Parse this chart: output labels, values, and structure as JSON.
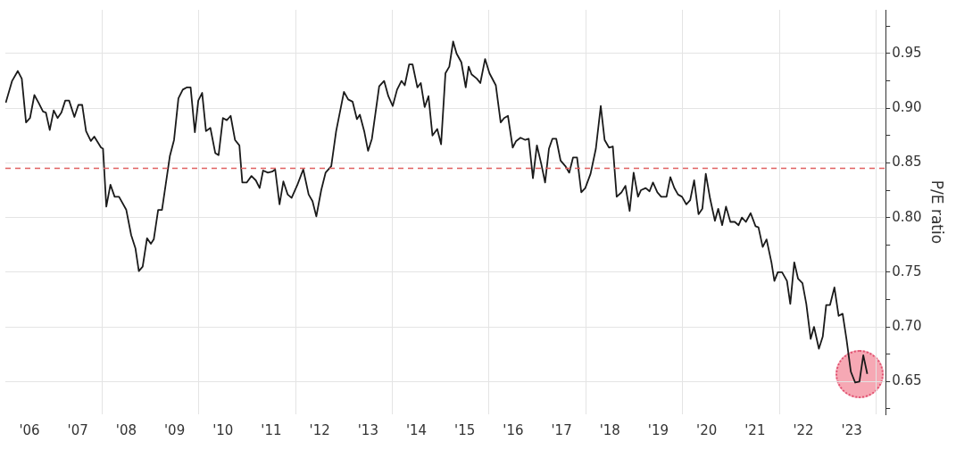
{
  "chart_data": {
    "type": "line",
    "ylabel": "P/E ratio",
    "x": [
      "2006-01-04",
      "2006-02-21",
      "2006-04-05",
      "2006-05-05",
      "2006-06-06",
      "2006-07-06",
      "2006-08-08",
      "2006-09-09",
      "2006-10-12",
      "2006-11-03",
      "2006-12-02",
      "2007-01-01",
      "2007-01-30",
      "2007-02-28",
      "2007-03-29",
      "2007-04-27",
      "2007-06-06",
      "2007-07-06",
      "2007-08-04",
      "2007-09-02",
      "2007-10-08",
      "2007-11-03",
      "2007-12-24",
      "2008-01-08",
      "2008-02-02",
      "2008-03-04",
      "2008-04-05",
      "2008-05-08",
      "2008-07-02",
      "2008-08-08",
      "2008-09-09",
      "2008-10-05",
      "2008-11-03",
      "2008-12-06",
      "2009-01-04",
      "2009-01-26",
      "2009-02-28",
      "2009-03-29",
      "2009-05-27",
      "2009-06-28",
      "2009-07-31",
      "2009-09-02",
      "2009-10-01",
      "2009-10-31",
      "2009-12-02",
      "2009-12-28",
      "2010-01-26",
      "2010-02-24",
      "2010-03-29",
      "2010-05-05",
      "2010-05-30",
      "2010-07-02",
      "2010-07-31",
      "2010-08-29",
      "2010-10-01",
      "2010-11-03",
      "2010-11-25",
      "2010-12-28",
      "2011-02-02",
      "2011-03-07",
      "2011-04-05",
      "2011-05-01",
      "2011-06-06",
      "2011-07-09",
      "2011-07-31",
      "2011-09-02",
      "2011-10-01",
      "2011-11-03",
      "2011-12-02",
      "2012-01-15",
      "2012-02-28",
      "2012-04-09",
      "2012-05-08",
      "2012-06-06",
      "2012-07-13",
      "2012-08-15",
      "2012-09-27",
      "2012-11-03",
      "2013-01-01",
      "2013-02-02",
      "2013-03-07",
      "2013-04-09",
      "2013-05-01",
      "2013-06-03",
      "2013-07-02",
      "2013-07-31",
      "2013-09-24",
      "2013-10-31",
      "2013-12-02",
      "2014-01-04",
      "2014-02-06",
      "2014-03-11",
      "2014-04-05",
      "2014-05-08",
      "2014-06-03",
      "2014-07-09",
      "2014-08-04",
      "2014-09-02",
      "2014-10-01",
      "2014-10-31",
      "2014-12-06",
      "2015-01-04",
      "2015-02-06",
      "2015-03-07",
      "2015-04-05",
      "2015-05-01",
      "2015-06-06",
      "2015-07-09",
      "2015-07-31",
      "2015-08-22",
      "2015-10-01",
      "2015-10-27",
      "2015-12-02",
      "2016-01-04",
      "2016-02-21",
      "2016-03-29",
      "2016-04-24",
      "2016-05-23",
      "2016-06-28",
      "2016-07-24",
      "2016-08-26",
      "2016-10-01",
      "2016-10-27",
      "2016-11-28",
      "2016-12-28",
      "2017-01-30",
      "2017-02-28",
      "2017-03-29",
      "2017-04-24",
      "2017-05-23",
      "2017-06-25",
      "2017-07-31",
      "2017-08-29",
      "2017-09-27",
      "2017-10-27",
      "2017-11-28",
      "2017-12-28",
      "2018-02-06",
      "2018-03-18",
      "2018-04-24",
      "2018-05-23",
      "2018-06-25",
      "2018-07-24",
      "2018-08-22",
      "2018-09-27",
      "2018-10-27",
      "2018-11-28",
      "2018-12-28",
      "2019-01-30",
      "2019-02-21",
      "2019-03-29",
      "2019-04-27",
      "2019-05-23",
      "2019-06-25",
      "2019-07-24",
      "2019-09-02",
      "2019-10-01",
      "2019-10-31",
      "2019-11-28",
      "2019-12-28",
      "2020-01-30",
      "2020-02-28",
      "2020-03-29",
      "2020-05-01",
      "2020-05-30",
      "2020-06-25",
      "2020-07-28",
      "2020-09-02",
      "2020-09-27",
      "2020-10-27",
      "2020-11-25",
      "2020-12-28",
      "2021-01-30",
      "2021-02-28",
      "2021-03-25",
      "2021-04-24",
      "2021-05-30",
      "2021-07-06",
      "2021-07-28",
      "2021-08-29",
      "2021-09-27",
      "2021-11-03",
      "2021-11-25",
      "2021-12-21",
      "2022-01-22",
      "2022-02-28",
      "2022-03-25",
      "2022-04-24",
      "2022-05-23",
      "2022-06-25",
      "2022-07-24",
      "2022-08-26",
      "2022-09-20",
      "2022-10-27",
      "2022-11-25",
      "2022-12-21",
      "2023-01-19",
      "2023-02-21",
      "2023-03-25",
      "2023-04-24",
      "2023-05-23",
      "2023-06-25",
      "2023-07-28",
      "2023-08-29",
      "2023-09-27",
      "2023-10-27"
    ],
    "values": [
      0.905,
      0.925,
      0.934,
      0.927,
      0.887,
      0.891,
      0.912,
      0.905,
      0.897,
      0.896,
      0.88,
      0.898,
      0.891,
      0.896,
      0.907,
      0.907,
      0.892,
      0.903,
      0.903,
      0.879,
      0.87,
      0.874,
      0.864,
      0.863,
      0.81,
      0.83,
      0.819,
      0.819,
      0.807,
      0.784,
      0.772,
      0.751,
      0.755,
      0.781,
      0.776,
      0.78,
      0.807,
      0.807,
      0.856,
      0.871,
      0.909,
      0.917,
      0.919,
      0.919,
      0.878,
      0.907,
      0.914,
      0.879,
      0.882,
      0.859,
      0.857,
      0.891,
      0.889,
      0.893,
      0.871,
      0.866,
      0.832,
      0.832,
      0.838,
      0.834,
      0.827,
      0.843,
      0.841,
      0.842,
      0.844,
      0.812,
      0.833,
      0.821,
      0.818,
      0.83,
      0.844,
      0.821,
      0.815,
      0.801,
      0.825,
      0.841,
      0.847,
      0.879,
      0.915,
      0.908,
      0.906,
      0.89,
      0.894,
      0.879,
      0.861,
      0.872,
      0.92,
      0.925,
      0.911,
      0.902,
      0.917,
      0.925,
      0.921,
      0.94,
      0.94,
      0.919,
      0.923,
      0.901,
      0.911,
      0.875,
      0.881,
      0.867,
      0.932,
      0.938,
      0.961,
      0.95,
      0.942,
      0.919,
      0.938,
      0.931,
      0.927,
      0.923,
      0.945,
      0.932,
      0.921,
      0.887,
      0.891,
      0.893,
      0.864,
      0.87,
      0.873,
      0.871,
      0.872,
      0.836,
      0.866,
      0.849,
      0.832,
      0.863,
      0.872,
      0.872,
      0.852,
      0.847,
      0.841,
      0.855,
      0.855,
      0.823,
      0.827,
      0.84,
      0.863,
      0.902,
      0.871,
      0.864,
      0.865,
      0.819,
      0.823,
      0.829,
      0.806,
      0.841,
      0.819,
      0.825,
      0.827,
      0.824,
      0.832,
      0.823,
      0.819,
      0.819,
      0.837,
      0.827,
      0.821,
      0.819,
      0.812,
      0.816,
      0.834,
      0.803,
      0.808,
      0.84,
      0.817,
      0.797,
      0.808,
      0.793,
      0.81,
      0.796,
      0.796,
      0.793,
      0.8,
      0.796,
      0.804,
      0.792,
      0.791,
      0.773,
      0.78,
      0.759,
      0.742,
      0.75,
      0.75,
      0.742,
      0.721,
      0.759,
      0.744,
      0.74,
      0.721,
      0.689,
      0.7,
      0.68,
      0.691,
      0.72,
      0.72,
      0.736,
      0.71,
      0.712,
      0.689,
      0.659,
      0.649,
      0.65,
      0.674,
      0.657
    ],
    "color": "#1a1a1a",
    "marker": "none",
    "line_style": "solid",
    "grid": true,
    "legend": false,
    "xlim": [
      "2006-01-01",
      "2024-03-14"
    ],
    "xticks": [
      {
        "value": "2006-07-02",
        "label": "'06"
      },
      {
        "value": "2007-07-02",
        "label": "'07"
      },
      {
        "value": "2008-01-01",
        "label": null
      },
      {
        "value": "2008-07-02",
        "label": "'08"
      },
      {
        "value": "2009-07-02",
        "label": "'09"
      },
      {
        "value": "2010-01-01",
        "label": null
      },
      {
        "value": "2010-07-02",
        "label": "'10"
      },
      {
        "value": "2011-07-02",
        "label": "'11"
      },
      {
        "value": "2012-01-01",
        "label": null
      },
      {
        "value": "2012-07-02",
        "label": "'12"
      },
      {
        "value": "2013-07-02",
        "label": "'13"
      },
      {
        "value": "2014-01-01",
        "label": null
      },
      {
        "value": "2014-07-02",
        "label": "'14"
      },
      {
        "value": "2015-07-02",
        "label": "'15"
      },
      {
        "value": "2016-01-01",
        "label": null
      },
      {
        "value": "2016-07-02",
        "label": "'16"
      },
      {
        "value": "2017-07-02",
        "label": "'17"
      },
      {
        "value": "2018-01-01",
        "label": null
      },
      {
        "value": "2018-07-02",
        "label": "'18"
      },
      {
        "value": "2019-07-02",
        "label": "'19"
      },
      {
        "value": "2020-01-01",
        "label": null
      },
      {
        "value": "2020-07-02",
        "label": "'20"
      },
      {
        "value": "2021-07-02",
        "label": "'21"
      },
      {
        "value": "2022-01-01",
        "label": null
      },
      {
        "value": "2022-07-02",
        "label": "'22"
      },
      {
        "value": "2023-07-02",
        "label": "'23"
      },
      {
        "value": "2024-01-01",
        "label": null
      }
    ],
    "ylim": [
      0.62,
      0.99
    ],
    "yticks": [
      {
        "value": 0.625,
        "label": null
      },
      {
        "value": 0.65,
        "label": "0.65"
      },
      {
        "value": 0.675,
        "label": null
      },
      {
        "value": 0.7,
        "label": "0.70"
      },
      {
        "value": 0.725,
        "label": null
      },
      {
        "value": 0.75,
        "label": "0.75"
      },
      {
        "value": 0.775,
        "label": null
      },
      {
        "value": 0.8,
        "label": "0.80"
      },
      {
        "value": 0.825,
        "label": null
      },
      {
        "value": 0.85,
        "label": "0.85"
      },
      {
        "value": 0.875,
        "label": null
      },
      {
        "value": 0.9,
        "label": "0.90"
      },
      {
        "value": 0.925,
        "label": null
      },
      {
        "value": 0.95,
        "label": "0.95"
      },
      {
        "value": 0.975,
        "label": null
      }
    ],
    "ref_lines": [
      {
        "axis": "y",
        "value": 0.845,
        "color": "#e06060",
        "line_style": "dashed"
      }
    ]
  }
}
